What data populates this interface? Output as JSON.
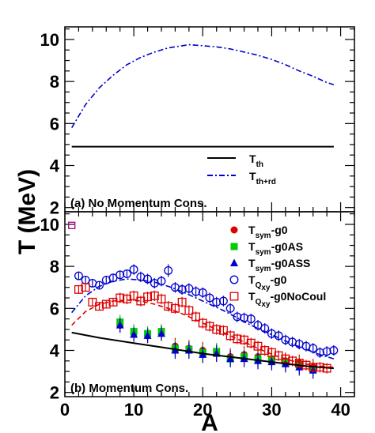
{
  "figure": {
    "ylabel": "T (MeV)",
    "xlabel": "A"
  },
  "chart_data": [
    {
      "type": "line",
      "panel_label": "(a) No Momentum Cons.",
      "xlim": [
        0,
        42
      ],
      "ylim": [
        1.8,
        10.6
      ],
      "yticks": [
        "2",
        "4",
        "6",
        "8",
        "10"
      ],
      "legend_position": "bottom-right",
      "series": [
        {
          "name": "T_th",
          "legend_main": "T",
          "legend_sub": "th",
          "style": "solid",
          "color": "#000000",
          "x": [
            1,
            5,
            10,
            15,
            20,
            25,
            30,
            35,
            39
          ],
          "y": [
            4.9,
            4.9,
            4.9,
            4.9,
            4.9,
            4.9,
            4.9,
            4.9,
            4.9
          ]
        },
        {
          "name": "T_th+rd",
          "legend_main": "T",
          "legend_sub": "th+rd",
          "style": "dashdot",
          "color": "#0000cc",
          "x": [
            1,
            3,
            5,
            7,
            9,
            11,
            13,
            15,
            17,
            18,
            20,
            22,
            24,
            26,
            28,
            30,
            32,
            34,
            36,
            38,
            39
          ],
          "y": [
            5.8,
            6.9,
            7.7,
            8.3,
            8.8,
            9.15,
            9.4,
            9.6,
            9.7,
            9.75,
            9.7,
            9.65,
            9.55,
            9.4,
            9.25,
            9.05,
            8.8,
            8.5,
            8.25,
            7.95,
            7.85
          ]
        }
      ]
    },
    {
      "type": "scatter",
      "panel_label": "(b) Momentum Cons.",
      "xlim": [
        0,
        42
      ],
      "ylim": [
        1.8,
        10.6
      ],
      "xticks": [
        "0",
        "10",
        "20",
        "30",
        "40"
      ],
      "yticks": [
        "2",
        "4",
        "6",
        "8",
        "10"
      ],
      "legend_position": "top-right",
      "series": [
        {
          "name": "T_sym-g0",
          "legend_main": "T",
          "legend_sub": "sym",
          "legend_suffix": "-g0",
          "marker": "circle-filled",
          "color": "#dd0000",
          "x": [
            8,
            10,
            12,
            14,
            16,
            18,
            20,
            22,
            24,
            26,
            28,
            30,
            32,
            34,
            36
          ],
          "y": [
            5.2,
            4.8,
            4.7,
            4.85,
            4.2,
            4.1,
            4.0,
            3.9,
            3.7,
            3.8,
            3.7,
            3.6,
            3.5,
            3.4,
            3.2
          ],
          "err": [
            0.35,
            0.35,
            0.35,
            0.35,
            0.4,
            0.4,
            0.4,
            0.4,
            0.4,
            0.4,
            0.4,
            0.4,
            0.4,
            0.4,
            0.4
          ]
        },
        {
          "name": "T_sym-g0AS",
          "legend_main": "T",
          "legend_sub": "sym",
          "legend_suffix": "-g0AS",
          "marker": "square-filled",
          "color": "#00cc00",
          "x": [
            8,
            10,
            12,
            14,
            16,
            18,
            20,
            22,
            24,
            26,
            28,
            30,
            32,
            34,
            36
          ],
          "y": [
            5.35,
            4.9,
            4.8,
            4.9,
            4.1,
            4.05,
            3.9,
            3.95,
            3.6,
            3.7,
            3.6,
            3.55,
            3.4,
            3.3,
            3.1
          ],
          "err": [
            0.35,
            0.35,
            0.35,
            0.35,
            0.4,
            0.4,
            0.4,
            0.4,
            0.4,
            0.4,
            0.4,
            0.4,
            0.4,
            0.4,
            0.4
          ]
        },
        {
          "name": "T_sym-g0ASS",
          "legend_main": "T",
          "legend_sub": "sym",
          "legend_suffix": "-g0ASS",
          "marker": "triangle-filled",
          "color": "#0000cc",
          "x": [
            8,
            10,
            12,
            14,
            16,
            18,
            20,
            22,
            24,
            26,
            28,
            30,
            32,
            34,
            36
          ],
          "y": [
            5.2,
            4.75,
            4.7,
            4.8,
            4.0,
            4.0,
            3.8,
            3.85,
            3.6,
            3.6,
            3.5,
            3.45,
            3.35,
            3.2,
            3.05
          ],
          "err": [
            0.35,
            0.35,
            0.35,
            0.35,
            0.4,
            0.4,
            0.4,
            0.4,
            0.4,
            0.4,
            0.4,
            0.4,
            0.4,
            0.4,
            0.4
          ]
        },
        {
          "name": "T_Qxy-g0",
          "legend_main": "T",
          "legend_sub": "Q",
          "legend_subsub": "xy",
          "legend_suffix": "-g0",
          "marker": "circle-open",
          "color": "#0000cc",
          "x": [
            2,
            3,
            4,
            5,
            6,
            7,
            8,
            9,
            10,
            11,
            12,
            13,
            14,
            15,
            16,
            17,
            18,
            19,
            20,
            21,
            22,
            23,
            24,
            25,
            26,
            27,
            28,
            29,
            30,
            31,
            32,
            33,
            34,
            35,
            36,
            37,
            38,
            39
          ],
          "y": [
            7.55,
            7.35,
            7.2,
            7.1,
            7.35,
            7.45,
            7.6,
            7.65,
            7.85,
            7.5,
            7.4,
            7.2,
            7.3,
            7.8,
            7.0,
            6.9,
            6.95,
            6.8,
            6.75,
            6.5,
            6.3,
            6.35,
            6.0,
            5.6,
            5.55,
            5.5,
            5.2,
            5.05,
            4.8,
            4.7,
            4.5,
            4.4,
            4.3,
            4.2,
            4.1,
            3.9,
            3.95,
            4.0
          ],
          "err": [
            0.2,
            0.2,
            0.2,
            0.2,
            0.2,
            0.2,
            0.2,
            0.2,
            0.25,
            0.25,
            0.25,
            0.25,
            0.25,
            0.3,
            0.25,
            0.25,
            0.25,
            0.25,
            0.25,
            0.25,
            0.25,
            0.25,
            0.25,
            0.25,
            0.25,
            0.25,
            0.25,
            0.25,
            0.25,
            0.25,
            0.25,
            0.25,
            0.25,
            0.25,
            0.25,
            0.25,
            0.25,
            0.25
          ]
        },
        {
          "name": "T_Qxy-g0NoCoul",
          "legend_main": "T",
          "legend_sub": "Q",
          "legend_subsub": "xy",
          "legend_suffix": "-g0NoCoul",
          "marker": "square-open",
          "color": "#dd0000",
          "x": [
            2,
            3,
            4,
            5,
            6,
            7,
            8,
            9,
            10,
            11,
            12,
            13,
            14,
            15,
            16,
            17,
            18,
            19,
            20,
            21,
            22,
            23,
            24,
            25,
            26,
            27,
            28,
            29,
            30,
            31,
            32,
            33,
            34,
            35,
            36,
            37,
            38
          ],
          "y": [
            6.9,
            7.0,
            6.3,
            6.1,
            6.2,
            6.3,
            6.5,
            6.45,
            6.6,
            6.35,
            6.55,
            6.6,
            6.45,
            6.1,
            6.0,
            6.3,
            5.9,
            5.6,
            5.3,
            5.15,
            5.0,
            4.95,
            4.7,
            4.55,
            4.5,
            4.35,
            4.2,
            4.0,
            3.9,
            3.75,
            3.6,
            3.5,
            3.4,
            3.3,
            3.2,
            3.2,
            3.15
          ],
          "err": [
            0.2,
            0.2,
            0.2,
            0.2,
            0.2,
            0.2,
            0.25,
            0.25,
            0.25,
            0.25,
            0.25,
            0.25,
            0.25,
            0.25,
            0.25,
            0.25,
            0.25,
            0.25,
            0.25,
            0.25,
            0.25,
            0.25,
            0.25,
            0.25,
            0.25,
            0.25,
            0.25,
            0.25,
            0.25,
            0.25,
            0.25,
            0.25,
            0.25,
            0.25,
            0.25,
            0.25,
            0.25
          ]
        },
        {
          "name": "T_th (no label)",
          "style": "solid",
          "color": "#000000",
          "in_legend": false,
          "x": [
            1,
            5,
            10,
            15,
            20,
            25,
            30,
            35,
            39
          ],
          "y": [
            4.85,
            4.6,
            4.35,
            4.1,
            3.85,
            3.65,
            3.45,
            3.25,
            3.15
          ]
        },
        {
          "name": "T_th+rd blue (no label)",
          "style": "dashdot",
          "color": "#0000cc",
          "in_legend": false,
          "x": [
            1,
            3,
            5,
            7,
            9,
            11,
            13,
            15,
            17,
            19,
            21,
            23,
            25,
            27,
            29,
            31,
            33,
            35,
            37,
            39
          ],
          "y": [
            5.8,
            6.6,
            7.05,
            7.3,
            7.4,
            7.35,
            7.25,
            7.05,
            6.8,
            6.5,
            6.2,
            5.9,
            5.55,
            5.2,
            4.9,
            4.6,
            4.3,
            4.05,
            3.8,
            3.6
          ]
        },
        {
          "name": "T_th+rd red (no label)",
          "style": "dashed",
          "color": "#dd0000",
          "in_legend": false,
          "x": [
            1,
            3,
            5,
            7,
            9,
            11,
            13,
            15,
            17,
            19,
            21,
            23,
            25,
            27,
            29,
            31,
            33,
            35,
            37,
            39
          ],
          "y": [
            5.2,
            5.85,
            6.2,
            6.35,
            6.4,
            6.35,
            6.2,
            6.0,
            5.75,
            5.45,
            5.15,
            4.85,
            4.55,
            4.25,
            3.95,
            3.7,
            3.5,
            3.35,
            3.25,
            3.2
          ]
        },
        {
          "name": "outlier (no label)",
          "marker": "square-open-small",
          "color": "#aa0088",
          "in_legend": false,
          "x": [
            1
          ],
          "y": [
            9.95
          ]
        }
      ]
    }
  ]
}
